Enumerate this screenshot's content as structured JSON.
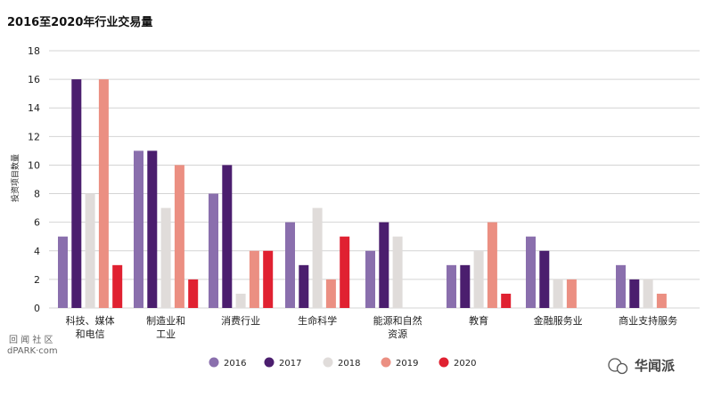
{
  "chart_data": {
    "type": "bar",
    "title": "2016至2020年行业交易量",
    "ylabel": "投资项目数量",
    "xlabel": "",
    "ylim": [
      0,
      18
    ],
    "yticks": [
      0,
      2,
      4,
      6,
      8,
      10,
      12,
      14,
      16,
      18
    ],
    "grid": true,
    "legend_position": "bottom",
    "categories": [
      [
        "科技、媒体",
        "和电信"
      ],
      [
        "制造业和",
        "工业"
      ],
      [
        "消费行业"
      ],
      [
        "生命科学"
      ],
      [
        "能源和自然",
        "资源"
      ],
      [
        "教育"
      ],
      [
        "金融服务业"
      ],
      [
        "商业支持服务"
      ]
    ],
    "series": [
      {
        "name": "2016",
        "color": "#8a6fad",
        "values": [
          5,
          11,
          8,
          6,
          4,
          3,
          5,
          3
        ]
      },
      {
        "name": "2017",
        "color": "#4b1e6e",
        "values": [
          16,
          11,
          10,
          3,
          6,
          3,
          4,
          2
        ]
      },
      {
        "name": "2018",
        "color": "#e0dcda",
        "values": [
          8,
          7,
          1,
          7,
          5,
          4,
          2,
          2
        ]
      },
      {
        "name": "2019",
        "color": "#eb8f82",
        "values": [
          16,
          10,
          4,
          2,
          0,
          6,
          2,
          1
        ]
      },
      {
        "name": "2020",
        "color": "#e02131",
        "values": [
          3,
          2,
          4,
          5,
          0,
          1,
          0,
          0
        ]
      }
    ]
  },
  "watermark": {
    "left_top": "回 闻 社 区",
    "left_bottom": "dPARK·com",
    "right": "华闻派"
  }
}
